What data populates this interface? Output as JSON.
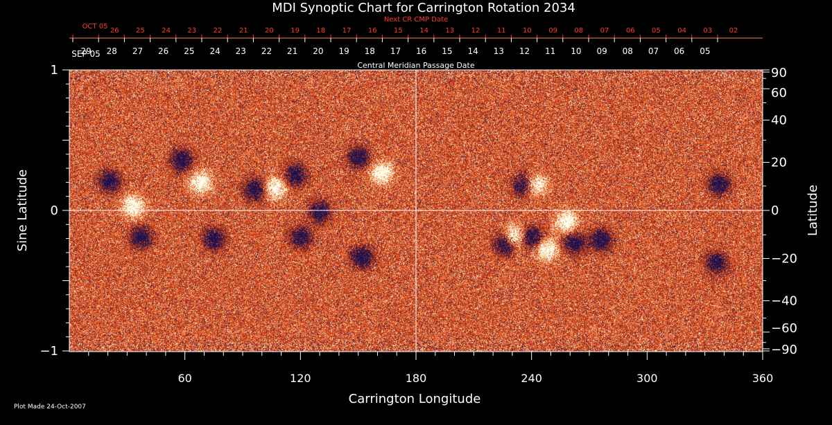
{
  "chart_data": {
    "type": "heatmap",
    "title": "MDI Synoptic Chart for Carrington Rotation 2034",
    "xlabel": "Carrington Longitude",
    "ylabel_left": "Sine Latitude",
    "ylabel_right": "Latitude",
    "xlim": [
      0,
      360
    ],
    "ylim": [
      -1,
      1
    ],
    "x_ticks": [
      60,
      120,
      180,
      240,
      300,
      360
    ],
    "y_ticks_left": [
      {
        "v": 1,
        "label": "1"
      },
      {
        "v": 0,
        "label": "0"
      },
      {
        "v": -1,
        "label": "−1"
      }
    ],
    "y_ticks_right": [
      {
        "deg": 90,
        "label": "90"
      },
      {
        "deg": 60,
        "label": "60"
      },
      {
        "deg": 40,
        "label": "40"
      },
      {
        "deg": 20,
        "label": "20"
      },
      {
        "deg": 0,
        "label": "0"
      },
      {
        "deg": -20,
        "label": "−20"
      },
      {
        "deg": -40,
        "label": "−40"
      },
      {
        "deg": -60,
        "label": "−60"
      },
      {
        "deg": -90,
        "label": "−90"
      }
    ],
    "grid": "cross at longitude 180 and sine latitude 0",
    "colormap": {
      "low": "#1a1050",
      "mid": "#e8480c",
      "high": "#ffffff"
    },
    "features": [
      {
        "lon": 21,
        "sinlat": 0.21,
        "polarity": "negative"
      },
      {
        "lon": 33,
        "sinlat": 0.03,
        "polarity": "positive"
      },
      {
        "lon": 37,
        "sinlat": -0.19,
        "polarity": "negative"
      },
      {
        "lon": 58,
        "sinlat": 0.36,
        "polarity": "negative"
      },
      {
        "lon": 68,
        "sinlat": 0.2,
        "polarity": "positive"
      },
      {
        "lon": 96,
        "sinlat": 0.15,
        "polarity": "negative"
      },
      {
        "lon": 107,
        "sinlat": 0.16,
        "polarity": "positive"
      },
      {
        "lon": 117,
        "sinlat": 0.25,
        "polarity": "negative"
      },
      {
        "lon": 130,
        "sinlat": -0.01,
        "polarity": "negative"
      },
      {
        "lon": 150,
        "sinlat": 0.38,
        "polarity": "negative"
      },
      {
        "lon": 162,
        "sinlat": 0.27,
        "polarity": "positive"
      },
      {
        "lon": 152,
        "sinlat": -0.33,
        "polarity": "negative"
      },
      {
        "lon": 120,
        "sinlat": -0.19,
        "polarity": "negative"
      },
      {
        "lon": 75,
        "sinlat": -0.2,
        "polarity": "negative"
      },
      {
        "lon": 231,
        "sinlat": -0.18,
        "polarity": "positive"
      },
      {
        "lon": 240,
        "sinlat": -0.19,
        "polarity": "negative"
      },
      {
        "lon": 248,
        "sinlat": -0.28,
        "polarity": "positive"
      },
      {
        "lon": 226,
        "sinlat": -0.24,
        "polarity": "negative"
      },
      {
        "lon": 236,
        "sinlat": 0.18,
        "polarity": "negative"
      },
      {
        "lon": 242,
        "sinlat": 0.18,
        "polarity": "positive"
      },
      {
        "lon": 258,
        "sinlat": -0.08,
        "polarity": "positive"
      },
      {
        "lon": 276,
        "sinlat": -0.21,
        "polarity": "negative"
      },
      {
        "lon": 262,
        "sinlat": -0.23,
        "polarity": "negative"
      },
      {
        "lon": 336,
        "sinlat": -0.37,
        "polarity": "negative"
      },
      {
        "lon": 337,
        "sinlat": 0.19,
        "polarity": "negative"
      }
    ]
  },
  "top_axis": {
    "label": "Next CR CMP Date",
    "color": "#ff3a2a",
    "start_label": "OCT 05",
    "days": [
      "26",
      "25",
      "24",
      "23",
      "22",
      "21",
      "20",
      "19",
      "18",
      "17",
      "16",
      "15",
      "14",
      "13",
      "12",
      "11",
      "10",
      "09",
      "08",
      "07",
      "06",
      "05",
      "04",
      "03",
      "02"
    ]
  },
  "mid_axis": {
    "label": "Central Meridian Passage Date",
    "start_label": "SEP 05",
    "days": [
      "29",
      "28",
      "27",
      "26",
      "25",
      "24",
      "23",
      "22",
      "21",
      "20",
      "19",
      "18",
      "17",
      "16",
      "15",
      "14",
      "13",
      "12",
      "11",
      "10",
      "09",
      "08",
      "07",
      "06",
      "05"
    ]
  },
  "footer": {
    "note": "Plot Made 24-Oct-2007"
  }
}
